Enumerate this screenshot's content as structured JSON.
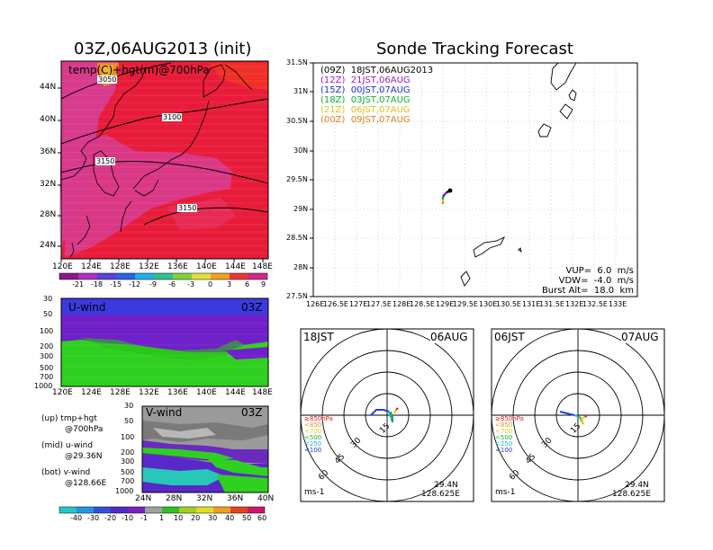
{
  "left": {
    "title": "03Z,06AUG2013 (init)",
    "map": {
      "label": "temp(C)+hgt(m)@700hPa",
      "lat_ticks": [
        "44N",
        "40N",
        "36N",
        "32N",
        "28N",
        "24N"
      ],
      "lon_ticks": [
        "120E",
        "124E",
        "128E",
        "132E",
        "136E",
        "140E",
        "144E",
        "148E"
      ],
      "contours": [
        "3050",
        "3100",
        "3150",
        "3150"
      ],
      "colorbar": [
        "-21",
        "-18",
        "-15",
        "-12",
        "-9",
        "-6",
        "-3",
        "0",
        "3",
        "6",
        "9"
      ]
    },
    "uwind": {
      "label": "U-wind",
      "time": "03Z",
      "p_ticks": [
        "30",
        "50",
        "100",
        "200",
        "300",
        "500",
        "700",
        "1000"
      ],
      "lon_ticks": [
        "120E",
        "124E",
        "128E",
        "132E",
        "136E",
        "140E",
        "144E",
        "148E"
      ]
    },
    "vwind": {
      "label": "V-wind",
      "time": "03Z",
      "p_ticks": [
        "30",
        "50",
        "100",
        "200",
        "300",
        "500",
        "700",
        "1000"
      ],
      "lat_ticks": [
        "24N",
        "28N",
        "32N",
        "36N",
        "40N"
      ]
    },
    "legend": {
      "up1": "(up) tmp+hgt",
      "up2": "@700hPa",
      "mid1": "(mid) u-wind",
      "mid2": "@29.36N",
      "bot1": "(bot) v-wind",
      "bot2": "@128.66E"
    },
    "wind_colorbar": [
      "-40",
      "-30",
      "-20",
      "-10",
      "-1",
      "1",
      "10",
      "20",
      "30",
      "40",
      "50",
      "60"
    ]
  },
  "tracking": {
    "title": "Sonde Tracking Forecast",
    "lat_ticks": [
      "31.5N",
      "31N",
      "30.5N",
      "30N",
      "29.5N",
      "29N",
      "28.5N",
      "28N",
      "27.5N"
    ],
    "lon_ticks": [
      "126E",
      "126.5E",
      "127E",
      "127.5E",
      "128E",
      "128.5E",
      "129E",
      "129.5E",
      "130E",
      "130.5E",
      "131E",
      "131.5E",
      "132E",
      "132.5E",
      "133E"
    ],
    "legend": [
      {
        "text": "(09Z)  18JST,06AUG2013",
        "color": "#000000"
      },
      {
        "text": "(12Z)  21JST,06AUG",
        "color": "#a020c0"
      },
      {
        "text": "(15Z)  00JST,07AUG",
        "color": "#2030e0"
      },
      {
        "text": "(18Z)  03JST,07AUG",
        "color": "#10b030"
      },
      {
        "text": "(21Z)  06JST,07AUG",
        "color": "#e0c020"
      },
      {
        "text": "(00Z)  09JST,07AUG",
        "color": "#e08020"
      }
    ],
    "params": {
      "vup": "VUP=  6.0  m/s",
      "vdw": "VDW=  -4.0  m/s",
      "burst": "Burst Alt=  18.0  km"
    }
  },
  "polar1": {
    "time_left": "18JST",
    "time_right": "06AUG",
    "rings": [
      "15",
      "30",
      "45",
      "60"
    ],
    "levels": [
      {
        "text": "≥850hPa",
        "color": "#e02020"
      },
      {
        "text": "<850",
        "color": "#f09020"
      },
      {
        "text": "<700",
        "color": "#e0d020"
      },
      {
        "text": "<500",
        "color": "#20b030"
      },
      {
        "text": "<250",
        "color": "#20b0e0"
      },
      {
        "text": "<100",
        "color": "#2040e0"
      }
    ],
    "unit": "ms-1",
    "lat": "29.4N",
    "lon": "128.625E"
  },
  "polar2": {
    "time_left": "06JST",
    "time_right": "07AUG",
    "rings": [
      "15",
      "30",
      "45",
      "60"
    ],
    "levels": [
      {
        "text": "≥850hPa",
        "color": "#e02020"
      },
      {
        "text": "<850",
        "color": "#f09020"
      },
      {
        "text": "<700",
        "color": "#e0d020"
      },
      {
        "text": "<500",
        "color": "#20b030"
      },
      {
        "text": "<250",
        "color": "#20b0e0"
      },
      {
        "text": "<100",
        "color": "#2040e0"
      }
    ],
    "unit": "ms-1",
    "lat": "29.4N",
    "lon": "128.625E"
  }
}
